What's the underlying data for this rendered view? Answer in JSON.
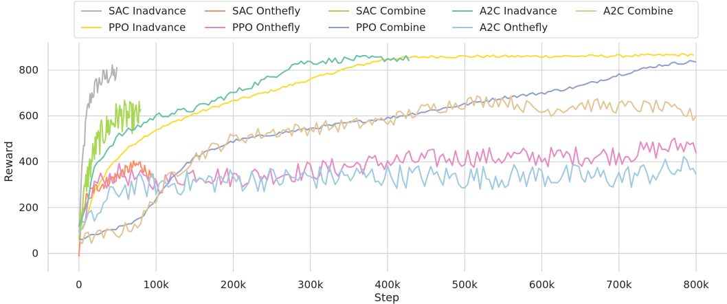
{
  "chart_data": {
    "type": "line",
    "title": "",
    "xlabel": "Step",
    "ylabel": "Reward",
    "xlim": [
      -40000,
      840000
    ],
    "ylim": [
      -80,
      920
    ],
    "xticks": [
      0,
      100000,
      200000,
      300000,
      400000,
      500000,
      600000,
      700000,
      800000
    ],
    "xtick_labels": [
      "0",
      "100k",
      "200k",
      "300k",
      "400k",
      "500k",
      "600k",
      "700k",
      "800k"
    ],
    "yticks": [
      0,
      200,
      400,
      600,
      800
    ],
    "ytick_labels": [
      "0",
      "200",
      "400",
      "600",
      "800"
    ],
    "grid": true,
    "legend": "top-center",
    "series": [
      {
        "name": "SAC Inadvance",
        "color": "#b3b3b3",
        "noise": 45,
        "period": 1200,
        "x": [
          0,
          5000,
          10000,
          15000,
          20000,
          30000,
          40000,
          50000
        ],
        "y": [
          100,
          420,
          600,
          680,
          720,
          760,
          780,
          780
        ]
      },
      {
        "name": "PPO Inadvance",
        "color": "#ffd92f",
        "noise": 6,
        "period": 4000,
        "x": [
          5000,
          20000,
          40000,
          60000,
          80000,
          100000,
          150000,
          200000,
          250000,
          300000,
          350000,
          400000,
          450000,
          500000,
          600000,
          700000,
          800000
        ],
        "y": [
          100,
          270,
          380,
          450,
          500,
          540,
          610,
          665,
          710,
          760,
          810,
          850,
          858,
          860,
          860,
          862,
          868
        ]
      },
      {
        "name": "SAC Onthefly",
        "color": "#fc8d62",
        "noise": 25,
        "period": 1200,
        "x": [
          0,
          3000,
          8000,
          15000,
          25000,
          40000,
          55000,
          70000,
          80000,
          100000
        ],
        "y": [
          -30,
          150,
          230,
          270,
          290,
          320,
          350,
          380,
          390,
          300
        ]
      },
      {
        "name": "PPO Onthefly",
        "color": "#e78ac3",
        "noise": 45,
        "period": 4000,
        "x": [
          0,
          20000,
          50000,
          100000,
          150000,
          200000,
          300000,
          400000,
          500000,
          600000,
          700000,
          800000
        ],
        "y": [
          80,
          300,
          350,
          300,
          350,
          330,
          360,
          400,
          420,
          420,
          430,
          480
        ]
      },
      {
        "name": "SAC Combine",
        "color": "#a6d854",
        "noise": 70,
        "period": 1000,
        "x": [
          0,
          10000,
          20000,
          30000,
          40000,
          50000,
          60000,
          70000,
          80000
        ],
        "y": [
          90,
          320,
          450,
          520,
          560,
          600,
          600,
          590,
          600
        ]
      },
      {
        "name": "PPO Combine",
        "color": "#8da0cb",
        "noise": 7,
        "period": 4000,
        "x": [
          0,
          50000,
          80000,
          100000,
          120000,
          150000,
          200000,
          250000,
          300000,
          350000,
          400000,
          450000,
          500000,
          550000,
          600000,
          650000,
          700000,
          750000,
          800000
        ],
        "y": [
          60,
          110,
          150,
          240,
          330,
          420,
          490,
          520,
          545,
          570,
          590,
          620,
          650,
          680,
          700,
          730,
          780,
          820,
          840
        ]
      },
      {
        "name": "A2C Inadvance",
        "color": "#66c2a5",
        "noise": 14,
        "period": 4000,
        "x": [
          0,
          10000,
          20000,
          50000,
          80000,
          100000,
          150000,
          200000,
          250000,
          280000,
          320000,
          360000,
          400000,
          430000
        ],
        "y": [
          120,
          200,
          380,
          510,
          560,
          600,
          630,
          700,
          770,
          830,
          840,
          850,
          850,
          850
        ]
      },
      {
        "name": "A2C Onthefly",
        "color": "#9ecae1",
        "noise": 55,
        "period": 4000,
        "x": [
          0,
          50000,
          100000,
          150000,
          200000,
          300000,
          400000,
          500000,
          600000,
          700000,
          800000
        ],
        "y": [
          80,
          280,
          300,
          310,
          320,
          330,
          340,
          330,
          340,
          330,
          380
        ]
      },
      {
        "name": "A2C Combine",
        "color": "#e5c494",
        "noise": 30,
        "period": 4000,
        "x": [
          0,
          50000,
          80000,
          100000,
          120000,
          150000,
          200000,
          250000,
          300000,
          350000,
          400000,
          450000,
          500000,
          550000,
          600000,
          650000,
          700000,
          750000,
          800000
        ],
        "y": [
          60,
          90,
          140,
          250,
          340,
          420,
          500,
          530,
          545,
          560,
          580,
          630,
          660,
          670,
          620,
          650,
          640,
          640,
          600
        ]
      }
    ]
  }
}
